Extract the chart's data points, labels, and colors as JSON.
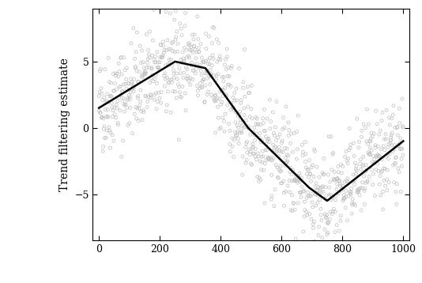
{
  "n_points": 1000,
  "seed": 42,
  "scatter_color": "#bebebe",
  "scatter_marker": "o",
  "scatter_size": 8,
  "scatter_linewidth": 0.5,
  "line_color": "#000000",
  "line_width": 1.8,
  "ylabel": "Trend filtering estimate",
  "xlabel": "",
  "xlim": [
    -20,
    1020
  ],
  "ylim": [
    -8.5,
    9.0
  ],
  "yticks": [
    -5,
    0,
    5
  ],
  "xticks": [
    0,
    200,
    400,
    600,
    800,
    1000
  ],
  "background_color": "#ffffff",
  "trend_knots_x": [
    0,
    250,
    350,
    490,
    690,
    750,
    1000
  ],
  "trend_knots_y": [
    1.5,
    5.0,
    4.5,
    0.0,
    -4.5,
    -5.5,
    -1.0
  ],
  "noise_std": 1.8,
  "figwidth": 5.34,
  "figheight": 3.58,
  "dpi": 100
}
